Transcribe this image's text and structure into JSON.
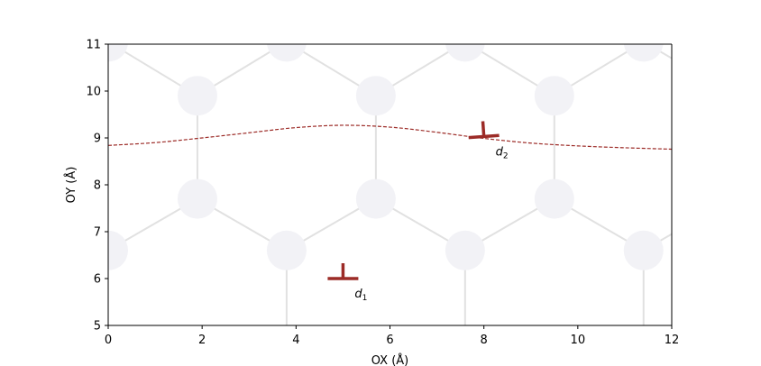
{
  "chart_data": {
    "type": "scatter",
    "title": "",
    "xlabel": "OX (Å)",
    "ylabel": "OY (Å)",
    "xlim": [
      0,
      12
    ],
    "ylim": [
      5,
      11
    ],
    "xticks": [
      0,
      2,
      4,
      6,
      8,
      10,
      12
    ],
    "yticks": [
      5,
      6,
      7,
      8,
      9,
      10,
      11
    ],
    "grid": false,
    "colors": {
      "atom": "#f2f2f6",
      "bond": "#e1e1e1",
      "dislocation": "#9c2b27",
      "curve": "#9c2b27"
    },
    "atoms": [
      {
        "x": 0.0,
        "y": 11.05
      },
      {
        "x": 3.8,
        "y": 11.05
      },
      {
        "x": 7.6,
        "y": 11.05
      },
      {
        "x": 11.4,
        "y": 11.05
      },
      {
        "x": 1.9,
        "y": 9.9
      },
      {
        "x": 5.7,
        "y": 9.9
      },
      {
        "x": 9.5,
        "y": 9.9
      },
      {
        "x": 1.9,
        "y": 7.7
      },
      {
        "x": 5.7,
        "y": 7.7
      },
      {
        "x": 9.5,
        "y": 7.7
      },
      {
        "x": 0.0,
        "y": 6.6
      },
      {
        "x": 3.8,
        "y": 6.6
      },
      {
        "x": 7.6,
        "y": 6.6
      },
      {
        "x": 11.4,
        "y": 6.6
      }
    ],
    "bonds": [
      [
        [
          0.0,
          11.05
        ],
        [
          1.9,
          9.9
        ]
      ],
      [
        [
          1.9,
          9.9
        ],
        [
          3.8,
          11.05
        ]
      ],
      [
        [
          3.8,
          11.05
        ],
        [
          5.7,
          9.9
        ]
      ],
      [
        [
          5.7,
          9.9
        ],
        [
          7.6,
          11.05
        ]
      ],
      [
        [
          7.6,
          11.05
        ],
        [
          9.5,
          9.9
        ]
      ],
      [
        [
          9.5,
          9.9
        ],
        [
          11.4,
          11.05
        ]
      ],
      [
        [
          11.4,
          11.05
        ],
        [
          12.0,
          10.7
        ]
      ],
      [
        [
          1.9,
          9.9
        ],
        [
          1.9,
          7.7
        ]
      ],
      [
        [
          5.7,
          9.9
        ],
        [
          5.7,
          7.7
        ]
      ],
      [
        [
          9.5,
          9.9
        ],
        [
          9.5,
          7.7
        ]
      ],
      [
        [
          0.0,
          6.6
        ],
        [
          1.9,
          7.7
        ]
      ],
      [
        [
          1.9,
          7.7
        ],
        [
          3.8,
          6.6
        ]
      ],
      [
        [
          3.8,
          6.6
        ],
        [
          5.7,
          7.7
        ]
      ],
      [
        [
          5.7,
          7.7
        ],
        [
          7.6,
          6.6
        ]
      ],
      [
        [
          7.6,
          6.6
        ],
        [
          9.5,
          7.7
        ]
      ],
      [
        [
          9.5,
          7.7
        ],
        [
          11.4,
          6.6
        ]
      ],
      [
        [
          11.4,
          6.6
        ],
        [
          12.0,
          6.95
        ]
      ],
      [
        [
          3.8,
          6.6
        ],
        [
          3.8,
          5.0
        ]
      ],
      [
        [
          7.6,
          6.6
        ],
        [
          7.6,
          5.0
        ]
      ],
      [
        [
          11.4,
          6.6
        ],
        [
          11.4,
          5.0
        ]
      ]
    ],
    "curve": {
      "x": [
        0,
        1,
        2,
        3,
        4,
        5,
        6,
        7,
        8,
        9,
        10,
        11,
        12
      ],
      "y": [
        8.84,
        8.9,
        9.0,
        9.11,
        9.22,
        9.27,
        9.23,
        9.12,
        8.99,
        8.89,
        8.83,
        8.79,
        8.76
      ]
    },
    "dislocations": [
      {
        "label": "d",
        "subscript": "1",
        "x": 5.0,
        "y": 6.0,
        "angle_deg": 0
      },
      {
        "label": "d",
        "subscript": "2",
        "x": 8.0,
        "y": 9.03,
        "angle_deg": 4
      }
    ]
  }
}
